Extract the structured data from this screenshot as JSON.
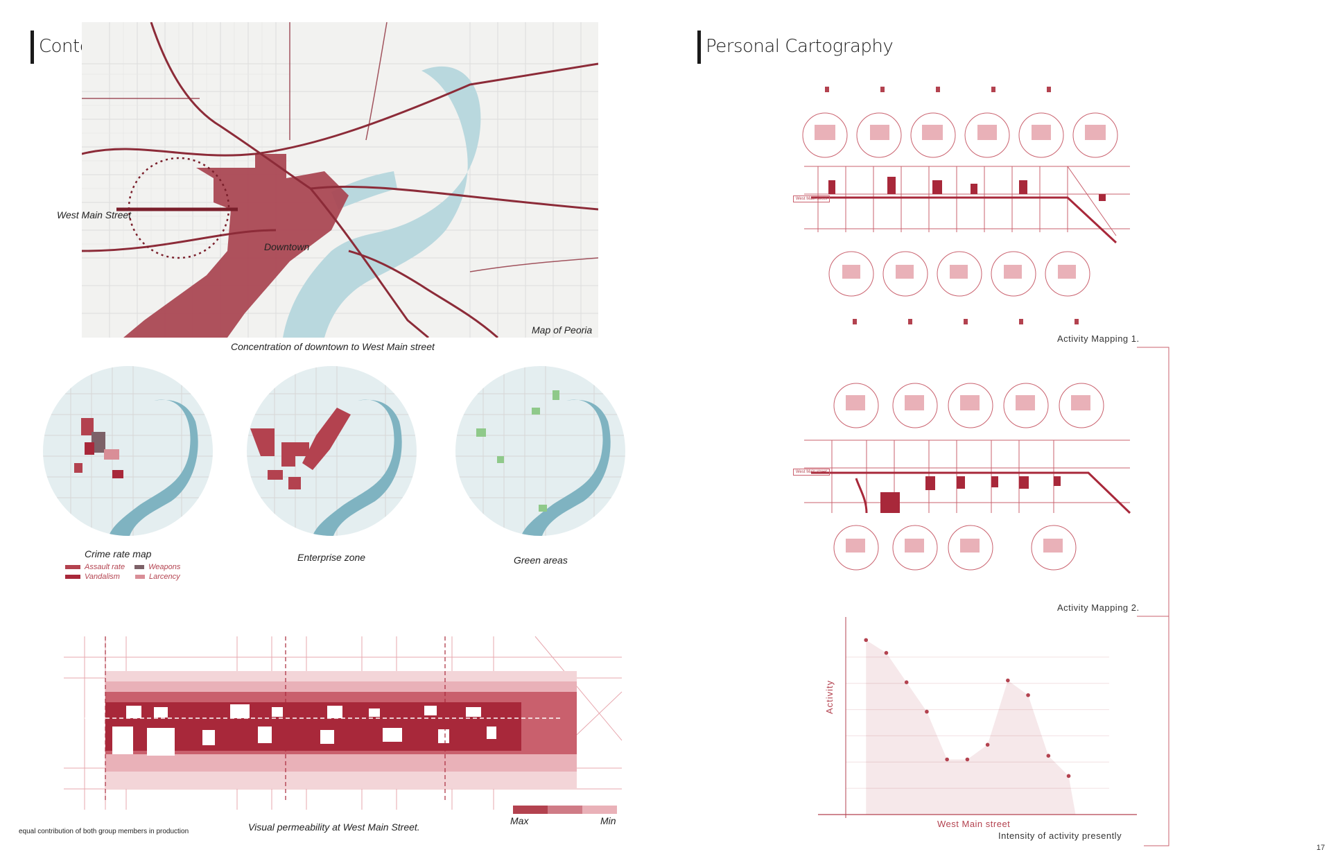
{
  "left": {
    "title": "Context",
    "map_labels": {
      "west_main": "West Main Street",
      "downtown": "Downtown",
      "map_of": "Map of Peoria"
    },
    "map_caption": "Concentration of downtown to West Main street",
    "circles": [
      {
        "caption": "Crime rate map"
      },
      {
        "caption": "Enterprise zone"
      },
      {
        "caption": "Green areas"
      }
    ],
    "crime_legend": [
      {
        "label": "Assault rate",
        "color": "#b3424f"
      },
      {
        "label": "Weapons",
        "color": "#7d6168"
      },
      {
        "label": "Vandalism",
        "color": "#a8283a"
      },
      {
        "label": "Larcency",
        "color": "#d98e97"
      }
    ],
    "permeability_caption": "Visual permeability at West Main Street.",
    "scale_max": "Max",
    "scale_min": "Min",
    "footnote": "equal contribution of both group members in production"
  },
  "right": {
    "title": "Personal Cartography",
    "mapping1_label": "Activity Mapping 1.",
    "mapping2_label": "Activity Mapping 2.",
    "street_tag": "West Main street",
    "chart_caption": "Intensity of activity presently",
    "page_number": "17"
  },
  "chart_data": {
    "type": "area",
    "title": "",
    "xlabel": "West Main street",
    "ylabel": "Activity",
    "points": [
      {
        "x": 1,
        "y": 95
      },
      {
        "x": 2,
        "y": 88
      },
      {
        "x": 3,
        "y": 72
      },
      {
        "x": 4,
        "y": 56
      },
      {
        "x": 5,
        "y": 30
      },
      {
        "x": 6,
        "y": 30
      },
      {
        "x": 7,
        "y": 38
      },
      {
        "x": 8,
        "y": 73
      },
      {
        "x": 9,
        "y": 65
      },
      {
        "x": 10,
        "y": 32
      },
      {
        "x": 11,
        "y": 21
      }
    ],
    "x_range": [
      0,
      13
    ],
    "y_range": [
      0,
      100
    ],
    "color": "#b3424f"
  }
}
